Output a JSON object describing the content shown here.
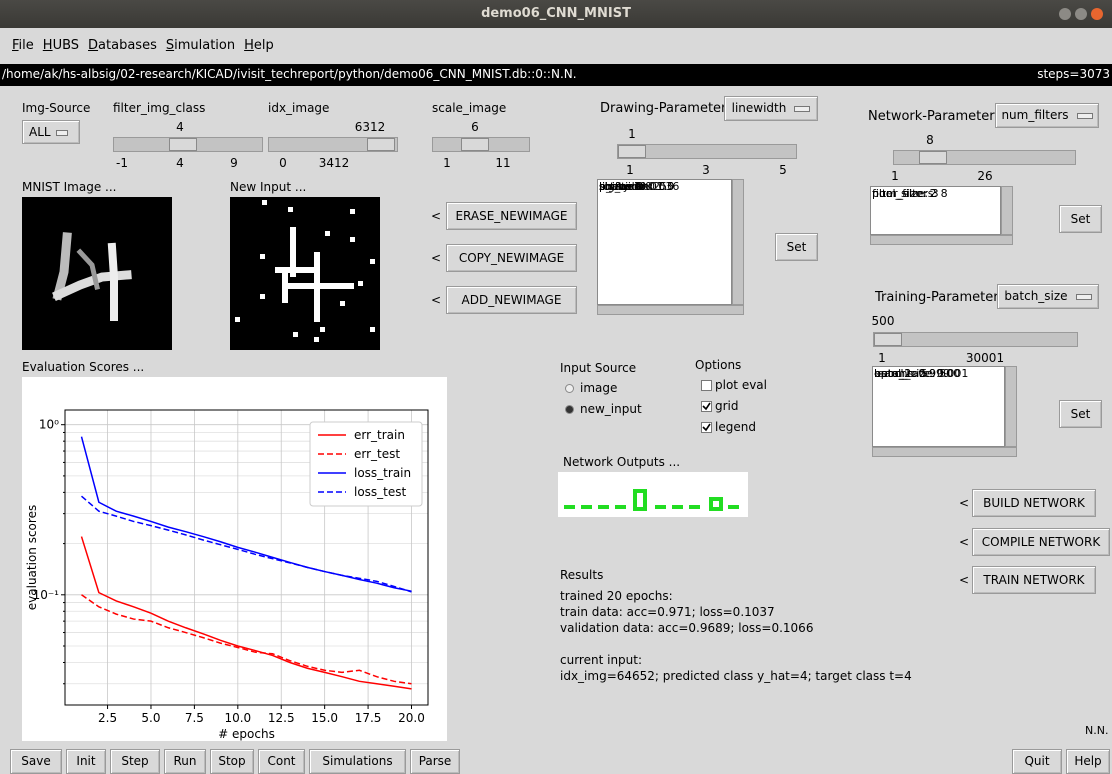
{
  "window": {
    "title": "demo06_CNN_MNIST"
  },
  "menu": [
    "File",
    "HUBS",
    "Databases",
    "Simulation",
    "Help"
  ],
  "status": {
    "path": "/home/ak/hs-albsig/02-research/KICAD/ivisit_techreport/python/demo06_CNN_MNIST.db::0::N.N.",
    "steps": "steps=3073"
  },
  "img_source": {
    "label": "Img-Source",
    "value": "ALL"
  },
  "sliders": [
    {
      "label": "filter_img_class",
      "value": 4,
      "ticks": [
        -1,
        4,
        9
      ]
    },
    {
      "label": "idx_image",
      "value": 6312,
      "ticks": [
        0,
        3412
      ]
    },
    {
      "label": "scale_image",
      "value": 6,
      "ticks": [
        1,
        11
      ]
    }
  ],
  "drawing": {
    "label": "Drawing-Parameters",
    "choice": "linewidth",
    "value": 1,
    "ticks": [
      1,
      3,
      5
    ],
    "list": [
      "linewidth: 1",
      "linecolor: 255",
      "shiftx: 0",
      "shifty: 0",
      "scale: 1.0",
      "rotate: 0.0",
      "p_noise: 0.036",
      "sig_noise: 1.0"
    ],
    "set": "Set"
  },
  "network": {
    "label": "Network-Parameters",
    "choice": "num_filters",
    "value": 8,
    "ticks": [
      1,
      26
    ],
    "list": [
      "num_filters: 8",
      "filter_size: 3",
      "pool_size: 2"
    ],
    "set": "Set"
  },
  "training": {
    "label": "Training-Parameters",
    "choice": "batch_size",
    "value": 500,
    "ticks": [
      1,
      30001
    ],
    "list": [
      "batch_size: 500",
      "epochs: 5",
      "learn_rate: 0.001",
      "beta_1: 0.9",
      "beta_2: 0.999"
    ],
    "set": "Set"
  },
  "images": {
    "mnist": "MNIST Image ...",
    "new_input": "New Input ..."
  },
  "image_buttons": [
    {
      "arrow": "<",
      "label": "ERASE_NEWIMAGE"
    },
    {
      "arrow": "<",
      "label": "COPY_NEWIMAGE"
    },
    {
      "arrow": "<",
      "label": "ADD_NEWIMAGE"
    }
  ],
  "eval_title": "Evaluation Scores ...",
  "input_source": {
    "label": "Input Source",
    "options": [
      {
        "label": "image",
        "selected": false
      },
      {
        "label": "new_input",
        "selected": true
      }
    ]
  },
  "options": {
    "label": "Options",
    "items": [
      {
        "label": "plot eval",
        "checked": false
      },
      {
        "label": "grid",
        "checked": true
      },
      {
        "label": "legend",
        "checked": true
      }
    ]
  },
  "network_outputs": "Network Outputs ...",
  "network_buttons": [
    {
      "arrow": "<",
      "label": "BUILD NETWORK"
    },
    {
      "arrow": "<",
      "label": "COMPILE NETWORK"
    },
    {
      "arrow": "<",
      "label": "TRAIN NETWORK"
    }
  ],
  "results": {
    "title": "Results",
    "training": [
      "trained 20 epochs:",
      "train data: acc=0.971; loss=0.1037",
      "validation data: acc=0.9689; loss=0.1066"
    ],
    "current": [
      "current input:",
      "idx_img=64652; predicted class y_hat=4; target class t=4"
    ]
  },
  "footer_label": "N.N.",
  "toolbar": [
    "Save",
    "Init",
    "Step",
    "Run",
    "Stop",
    "Cont",
    "Simulations",
    "Parse"
  ],
  "toolbar_right": [
    "Quit",
    "Help"
  ],
  "chart_data": {
    "type": "line",
    "xlabel": "# epochs",
    "ylabel": "evaluation scores",
    "x": [
      1,
      2,
      3,
      4,
      5,
      6,
      7,
      8,
      9,
      10,
      11,
      12,
      13,
      14,
      15,
      16,
      17,
      18,
      19,
      20
    ],
    "series": [
      {
        "name": "err_train",
        "color": "#ff0000",
        "linestyle": "solid",
        "values": [
          0.22,
          0.103,
          0.092,
          0.085,
          0.078,
          0.07,
          0.064,
          0.059,
          0.054,
          0.05,
          0.047,
          0.044,
          0.04,
          0.037,
          0.035,
          0.033,
          0.031,
          0.03,
          0.029,
          0.028
        ]
      },
      {
        "name": "err_test",
        "color": "#ff0000",
        "linestyle": "dashed",
        "values": [
          0.1,
          0.085,
          0.077,
          0.072,
          0.07,
          0.064,
          0.06,
          0.056,
          0.052,
          0.049,
          0.046,
          0.045,
          0.041,
          0.038,
          0.036,
          0.035,
          0.036,
          0.033,
          0.031,
          0.03
        ]
      },
      {
        "name": "loss_train",
        "color": "#0000ff",
        "linestyle": "solid",
        "values": [
          0.85,
          0.35,
          0.31,
          0.29,
          0.27,
          0.25,
          0.235,
          0.22,
          0.205,
          0.19,
          0.178,
          0.166,
          0.155,
          0.145,
          0.137,
          0.13,
          0.123,
          0.117,
          0.11,
          0.105
        ]
      },
      {
        "name": "loss_test",
        "color": "#0000ff",
        "linestyle": "dashed",
        "values": [
          0.38,
          0.31,
          0.29,
          0.27,
          0.255,
          0.24,
          0.225,
          0.21,
          0.197,
          0.185,
          0.173,
          0.163,
          0.154,
          0.145,
          0.137,
          0.13,
          0.125,
          0.12,
          0.112,
          0.104
        ]
      }
    ],
    "xlim": [
      0.05,
      20.95
    ],
    "xticks": [
      2.5,
      {
        "value": 5,
        "label": "5.0"
      },
      7.5,
      {
        "value": 10,
        "label": "10.0"
      },
      12.5,
      {
        "value": 15,
        "label": "15.0"
      },
      17.5,
      {
        "value": 20,
        "label": "20.0"
      }
    ],
    "ylim": [
      0.0225,
      1.22
    ],
    "yscale": "log",
    "yticks": [
      {
        "value": 0.1,
        "label": "10⁻¹"
      },
      {
        "value": 1,
        "label": "10⁰"
      }
    ],
    "yminorticks": [
      0.03,
      0.04,
      0.05,
      0.06,
      0.07,
      0.08,
      0.09,
      0.2,
      0.3,
      0.4,
      0.5,
      0.6,
      0.7,
      0.8,
      0.9
    ],
    "grid": true,
    "legend": "upper right"
  }
}
